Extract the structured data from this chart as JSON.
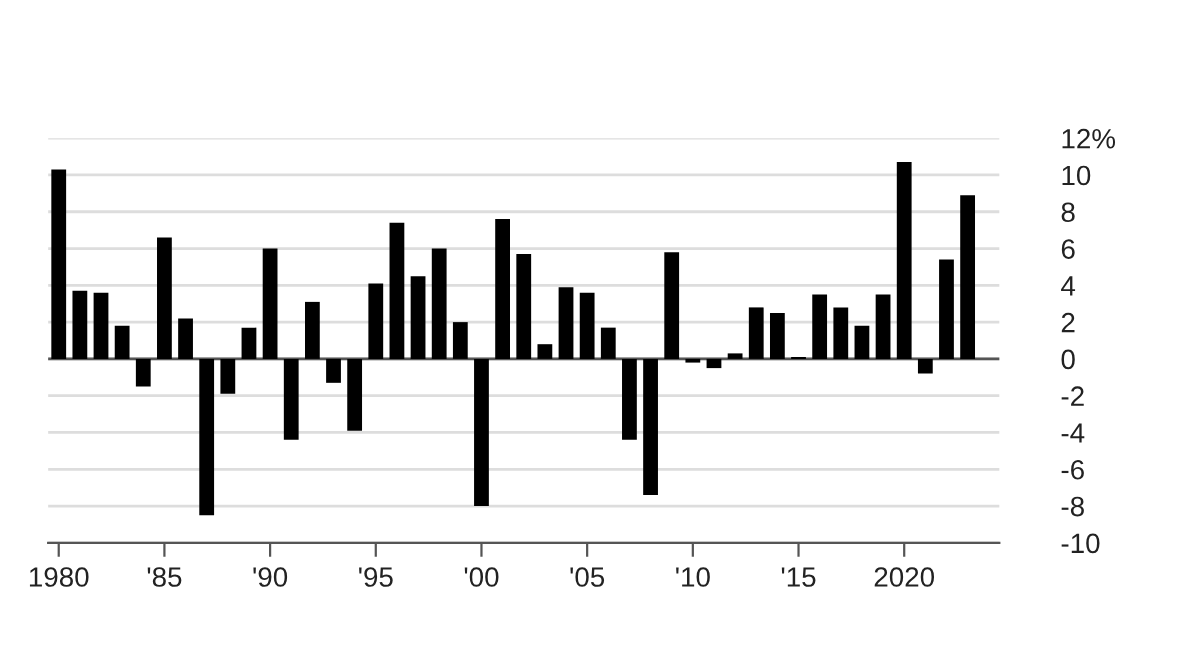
{
  "chart_data": {
    "type": "bar",
    "x": [
      1980,
      1981,
      1982,
      1983,
      1984,
      1985,
      1986,
      1987,
      1988,
      1989,
      1990,
      1991,
      1992,
      1993,
      1994,
      1995,
      1996,
      1997,
      1998,
      1999,
      2000,
      2001,
      2002,
      2003,
      2004,
      2005,
      2006,
      2007,
      2008,
      2009,
      2010,
      2011,
      2012,
      2013,
      2014,
      2015,
      2016,
      2017,
      2018,
      2019,
      2020,
      2021,
      2022,
      2023
    ],
    "values": [
      10.3,
      3.7,
      3.6,
      1.8,
      -1.5,
      6.6,
      2.2,
      -8.5,
      -1.9,
      1.7,
      6.0,
      -4.4,
      3.1,
      -1.3,
      -3.9,
      4.1,
      7.4,
      4.5,
      6.0,
      2.0,
      -8.0,
      7.6,
      5.7,
      0.8,
      3.9,
      3.6,
      1.7,
      -4.4,
      -7.4,
      5.8,
      -0.2,
      -0.5,
      0.3,
      2.8,
      2.5,
      0.1,
      3.5,
      2.8,
      1.8,
      3.5,
      10.7,
      -0.8,
      5.4,
      8.9
    ],
    "color": "#000000",
    "xlim": [
      1979.5,
      2024.5
    ],
    "xticks": [
      {
        "value": 1980,
        "label": "1980"
      },
      {
        "value": 1985,
        "label": "'85"
      },
      {
        "value": 1990,
        "label": "'90"
      },
      {
        "value": 1995,
        "label": "'95"
      },
      {
        "value": 2000,
        "label": "'00"
      },
      {
        "value": 2005,
        "label": "'05"
      },
      {
        "value": 2010,
        "label": "'10"
      },
      {
        "value": 2015,
        "label": "'15"
      },
      {
        "value": 2020,
        "label": "2020"
      }
    ],
    "ylim": [
      -10,
      12
    ],
    "yticks": [
      {
        "value": 12,
        "label": "12%"
      },
      10,
      8,
      6,
      4,
      2,
      0,
      -2,
      -4,
      -6,
      -8,
      -10
    ],
    "grid": "y",
    "legend": false
  }
}
